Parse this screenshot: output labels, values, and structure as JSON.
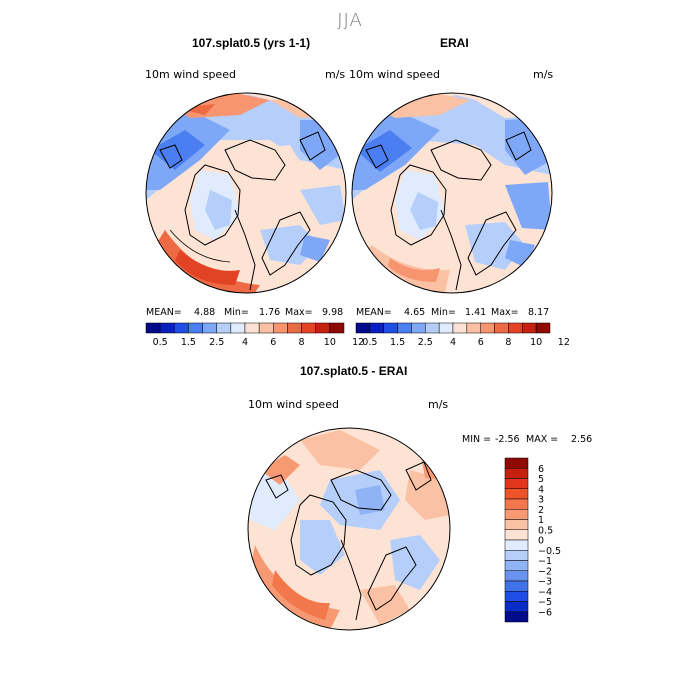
{
  "season_title": "JJA",
  "colors": {
    "seq_scale": [
      "#020b8a",
      "#0a1fc0",
      "#1f4ee6",
      "#4b7ef0",
      "#7ea8f7",
      "#b5cffa",
      "#e0ecfd",
      "#fde3d4",
      "#fbc1a4",
      "#f69570",
      "#ee6a44",
      "#e24324",
      "#c4210e",
      "#8f0a04"
    ],
    "diff_scale": [
      "#8f0a04",
      "#c4210e",
      "#e2361a",
      "#ec5429",
      "#f2774a",
      "#f79a74",
      "#fbc1a4",
      "#fde3d4",
      "#e0ecfd",
      "#b5cffa",
      "#8fb3f5",
      "#6a92ef",
      "#4272e8",
      "#1f4ee6",
      "#0a2dc7",
      "#020b8a"
    ]
  },
  "panels": [
    {
      "id": "model",
      "title": "107.splat0.5 (yrs 1-1)",
      "variable": "10m wind speed",
      "units": "m/s",
      "stats": {
        "mean_label": "MEAN=",
        "mean": "4.88",
        "min_label": "Min=",
        "min": "1.76",
        "max_label": "Max=",
        "max": "9.98"
      }
    },
    {
      "id": "obs",
      "title": "ERAI",
      "variable": "10m wind speed",
      "units": "m/s",
      "stats": {
        "mean_label": "MEAN=",
        "mean": "4.65",
        "min_label": "Min=",
        "min": "1.41",
        "max_label": "Max=",
        "max": "8.17"
      }
    },
    {
      "id": "diff",
      "title": "107.splat0.5 - ERAI",
      "variable": "10m wind speed",
      "units": "m/s",
      "stats": {
        "min_label": "MIN =",
        "min": "-2.56",
        "max_label": "MAX =",
        "max": "2.56"
      }
    }
  ],
  "chart_data": [
    {
      "type": "heatmap",
      "title": "107.splat0.5 (yrs 1-1)",
      "subtitle": "JJA",
      "variable": "10m wind speed",
      "units": "m/s",
      "projection": "polar stereographic (Northern Hemisphere)",
      "colorbar_labels": [
        "0.5",
        "1.5",
        "2.5",
        "4",
        "6",
        "8",
        "10",
        "12"
      ],
      "mean": 4.88,
      "min": 1.76,
      "max": 9.98
    },
    {
      "type": "heatmap",
      "title": "ERAI",
      "subtitle": "JJA",
      "variable": "10m wind speed",
      "units": "m/s",
      "projection": "polar stereographic (Northern Hemisphere)",
      "colorbar_labels": [
        "0.5",
        "1.5",
        "2.5",
        "4",
        "6",
        "8",
        "10",
        "12"
      ],
      "mean": 4.65,
      "min": 1.41,
      "max": 8.17
    },
    {
      "type": "heatmap",
      "title": "107.splat0.5 - ERAI",
      "subtitle": "JJA",
      "variable": "10m wind speed",
      "units": "m/s",
      "projection": "polar stereographic (Northern Hemisphere)",
      "colorbar_labels": [
        "6",
        "5",
        "4",
        "3",
        "2",
        "1",
        "0.5",
        "0",
        "−0.5",
        "−1",
        "−2",
        "−3",
        "−4",
        "−5",
        "−6"
      ],
      "min": -2.56,
      "max": 2.56
    }
  ]
}
